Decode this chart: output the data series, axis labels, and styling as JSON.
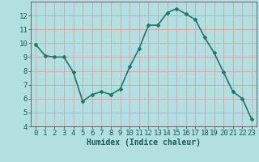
{
  "x": [
    0,
    1,
    2,
    3,
    4,
    5,
    6,
    7,
    8,
    9,
    10,
    11,
    12,
    13,
    14,
    15,
    16,
    17,
    18,
    19,
    20,
    21,
    22,
    23
  ],
  "y": [
    9.9,
    9.1,
    9.0,
    9.0,
    7.9,
    5.8,
    6.3,
    6.5,
    6.3,
    6.7,
    8.3,
    9.6,
    11.3,
    11.3,
    12.2,
    12.5,
    12.1,
    11.7,
    10.4,
    9.3,
    7.9,
    6.5,
    6.0,
    4.5
  ],
  "line_color": "#1a7a6e",
  "marker": "D",
  "marker_size": 2.0,
  "bg_color": "#b2e0e0",
  "grid_color": "#d8a0a0",
  "xlabel": "Humidex (Indice chaleur)",
  "xlim": [
    -0.5,
    23.5
  ],
  "ylim": [
    4,
    13
  ],
  "yticks": [
    4,
    5,
    6,
    7,
    8,
    9,
    10,
    11,
    12
  ],
  "xticks": [
    0,
    1,
    2,
    3,
    4,
    5,
    6,
    7,
    8,
    9,
    10,
    11,
    12,
    13,
    14,
    15,
    16,
    17,
    18,
    19,
    20,
    21,
    22,
    23
  ],
  "xlabel_fontsize": 7,
  "tick_fontsize": 6.5,
  "line_width": 1.2
}
